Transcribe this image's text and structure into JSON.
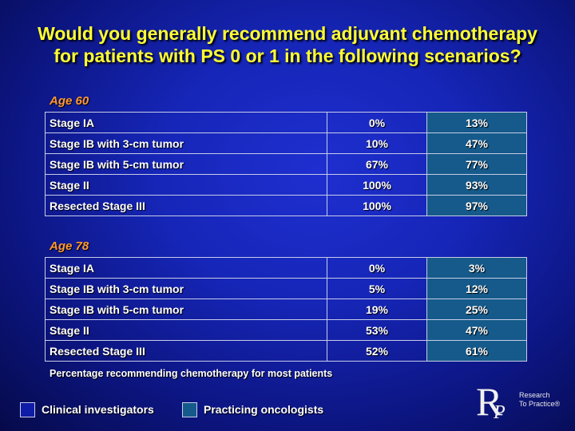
{
  "title": "Would you generally recommend adjuvant chemotherapy for patients with PS 0 or 1 in the following scenarios?",
  "sections": [
    {
      "label": "Age 60",
      "rows": [
        {
          "scenario": "Stage IA",
          "clinical": "0%",
          "practicing": "13%"
        },
        {
          "scenario": "Stage IB with 3-cm tumor",
          "clinical": "10%",
          "practicing": "47%"
        },
        {
          "scenario": "Stage IB with 5-cm tumor",
          "clinical": "67%",
          "practicing": "77%"
        },
        {
          "scenario": "Stage II",
          "clinical": "100%",
          "practicing": "93%"
        },
        {
          "scenario": "Resected Stage III",
          "clinical": "100%",
          "practicing": "97%"
        }
      ]
    },
    {
      "label": "Age 78",
      "rows": [
        {
          "scenario": "Stage IA",
          "clinical": "0%",
          "practicing": "3%"
        },
        {
          "scenario": "Stage IB with 3-cm tumor",
          "clinical": "5%",
          "practicing": "12%"
        },
        {
          "scenario": "Stage IB with 5-cm tumor",
          "clinical": "19%",
          "practicing": "25%"
        },
        {
          "scenario": "Stage II",
          "clinical": "53%",
          "practicing": "47%"
        },
        {
          "scenario": "Resected Stage III",
          "clinical": "52%",
          "practicing": "61%"
        }
      ]
    }
  ],
  "footnote": "Percentage recommending chemotherapy for most patients",
  "legend": {
    "clinical_label": "Clinical investigators",
    "practicing_label": "Practicing oncologists"
  },
  "logo": {
    "letter_r": "R",
    "letter_p": "P",
    "line1": "Research",
    "line2": "To Practice®"
  },
  "colors": {
    "title": "#ffff33",
    "section_label": "#ff9933",
    "practicing_column": "#155a8a"
  }
}
